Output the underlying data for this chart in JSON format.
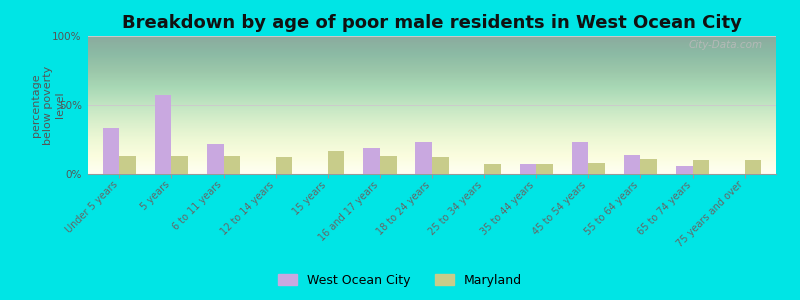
{
  "title": "Breakdown by age of poor male residents in West Ocean City",
  "ylabel": "percentage\nbelow poverty\nlevel",
  "categories": [
    "Under 5 years",
    "5 years",
    "6 to 11 years",
    "12 to 14 years",
    "15 years",
    "16 and 17 years",
    "18 to 24 years",
    "25 to 34 years",
    "35 to 44 years",
    "45 to 54 years",
    "55 to 64 years",
    "65 to 74 years",
    "75 years and over"
  ],
  "woc_values": [
    33,
    57,
    22,
    0,
    0,
    19,
    23,
    0,
    7,
    23,
    14,
    6,
    0
  ],
  "md_values": [
    13,
    13,
    13,
    12,
    17,
    13,
    12,
    7,
    7,
    8,
    11,
    10,
    10
  ],
  "woc_color": "#c9a8e0",
  "md_color": "#c8cc8a",
  "bg_color": "#00e5e5",
  "ylim": [
    0,
    100
  ],
  "yticks": [
    0,
    50,
    100
  ],
  "ytick_labels": [
    "0%",
    "50%",
    "100%"
  ],
  "title_fontsize": 13,
  "axis_label_fontsize": 8,
  "tick_fontsize": 7.5,
  "watermark": "City-Data.com",
  "legend_woc": "West Ocean City",
  "legend_md": "Maryland",
  "bar_width": 0.32
}
